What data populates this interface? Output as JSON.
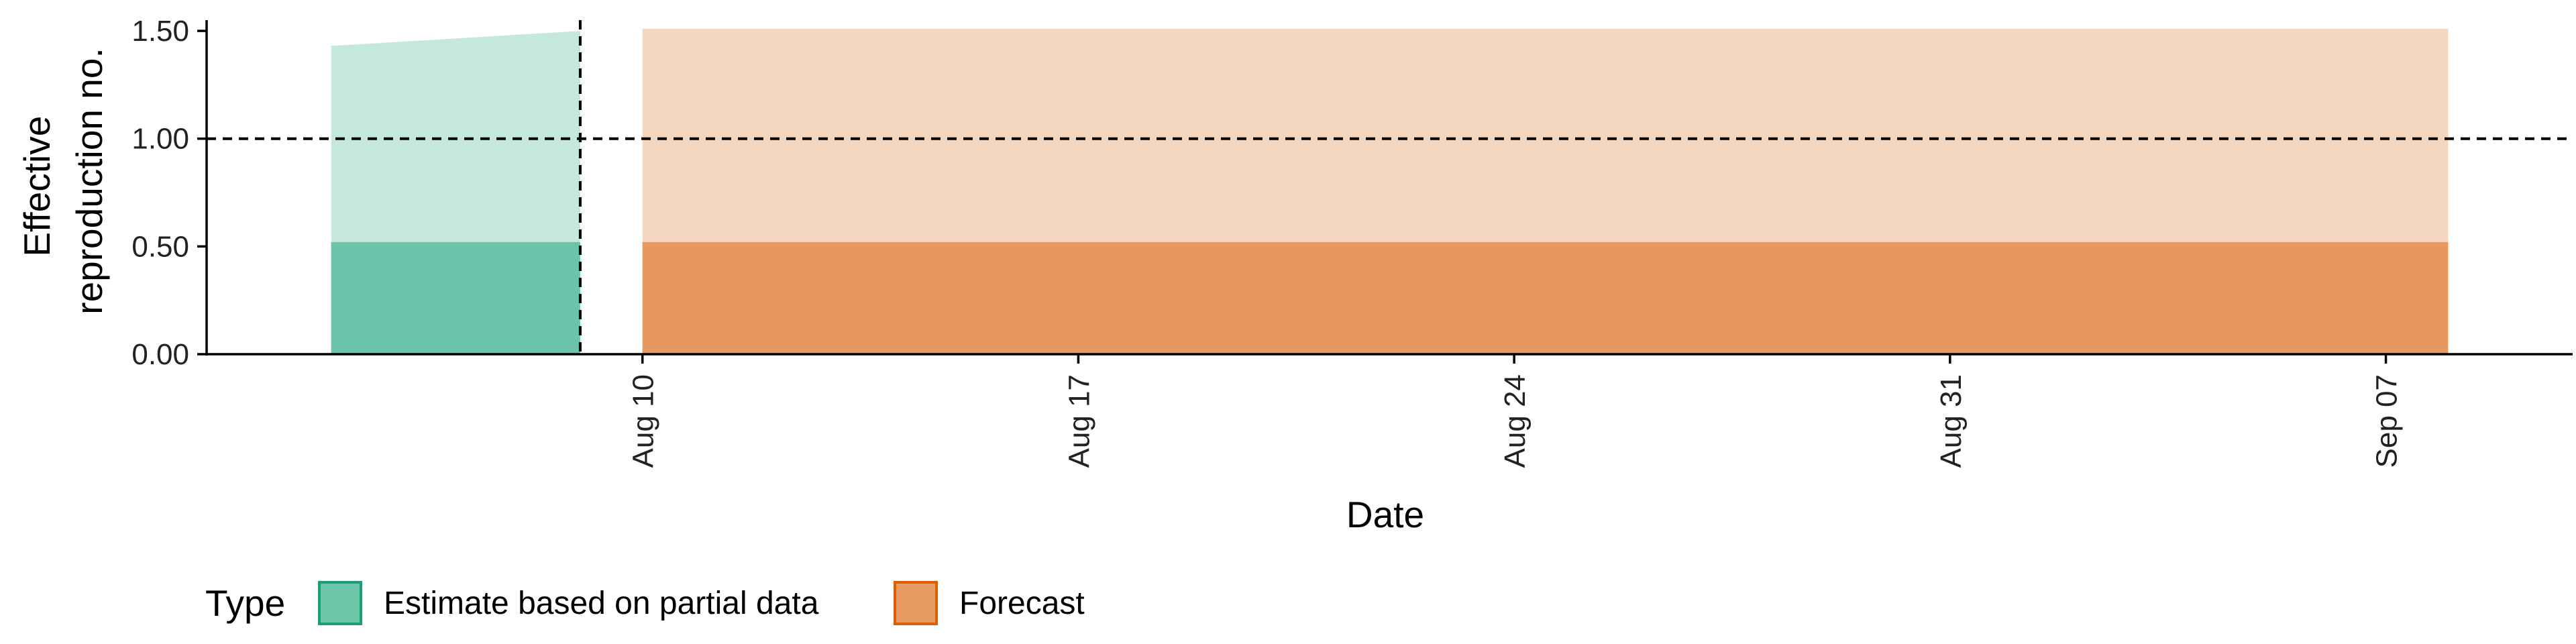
{
  "chart_data": {
    "type": "area",
    "xlabel": "Date",
    "ylabel_lines": [
      "Effective",
      "reproduction no."
    ],
    "ylim": [
      0,
      1.55
    ],
    "yticks": [
      0,
      0.5,
      1.0,
      1.5
    ],
    "ytick_labels": [
      "0.00",
      "0.50",
      "1.00",
      "1.50"
    ],
    "xlim": [
      "2020-08-03",
      "2020-09-10"
    ],
    "xticks": [
      "2020-08-10",
      "2020-08-17",
      "2020-08-24",
      "2020-08-31",
      "2020-09-07"
    ],
    "xtick_labels": [
      "Aug 10",
      "Aug 17",
      "Aug 24",
      "Aug 31",
      "Sep 07"
    ],
    "reference_hline": 1.0,
    "reference_vline": "2020-08-09",
    "legend_title": "Type",
    "legend_position": "bottom",
    "series": [
      {
        "name": "Estimate based on partial data",
        "color": "#66c2a5",
        "x": [
          "2020-08-05",
          "2020-08-09"
        ],
        "lower_90": [
          0.0,
          0.0
        ],
        "upper_90": [
          1.43,
          1.5
        ],
        "lower_50": [
          0.0,
          0.0
        ],
        "upper_50": [
          0.52,
          0.52
        ]
      },
      {
        "name": "Forecast",
        "color": "#e6955a",
        "x": [
          "2020-08-10",
          "2020-09-08"
        ],
        "lower_90": [
          0.0,
          0.0
        ],
        "upper_90": [
          1.51,
          1.51
        ],
        "lower_50": [
          0.0,
          0.0
        ],
        "upper_50": [
          0.52,
          0.52
        ]
      }
    ]
  }
}
